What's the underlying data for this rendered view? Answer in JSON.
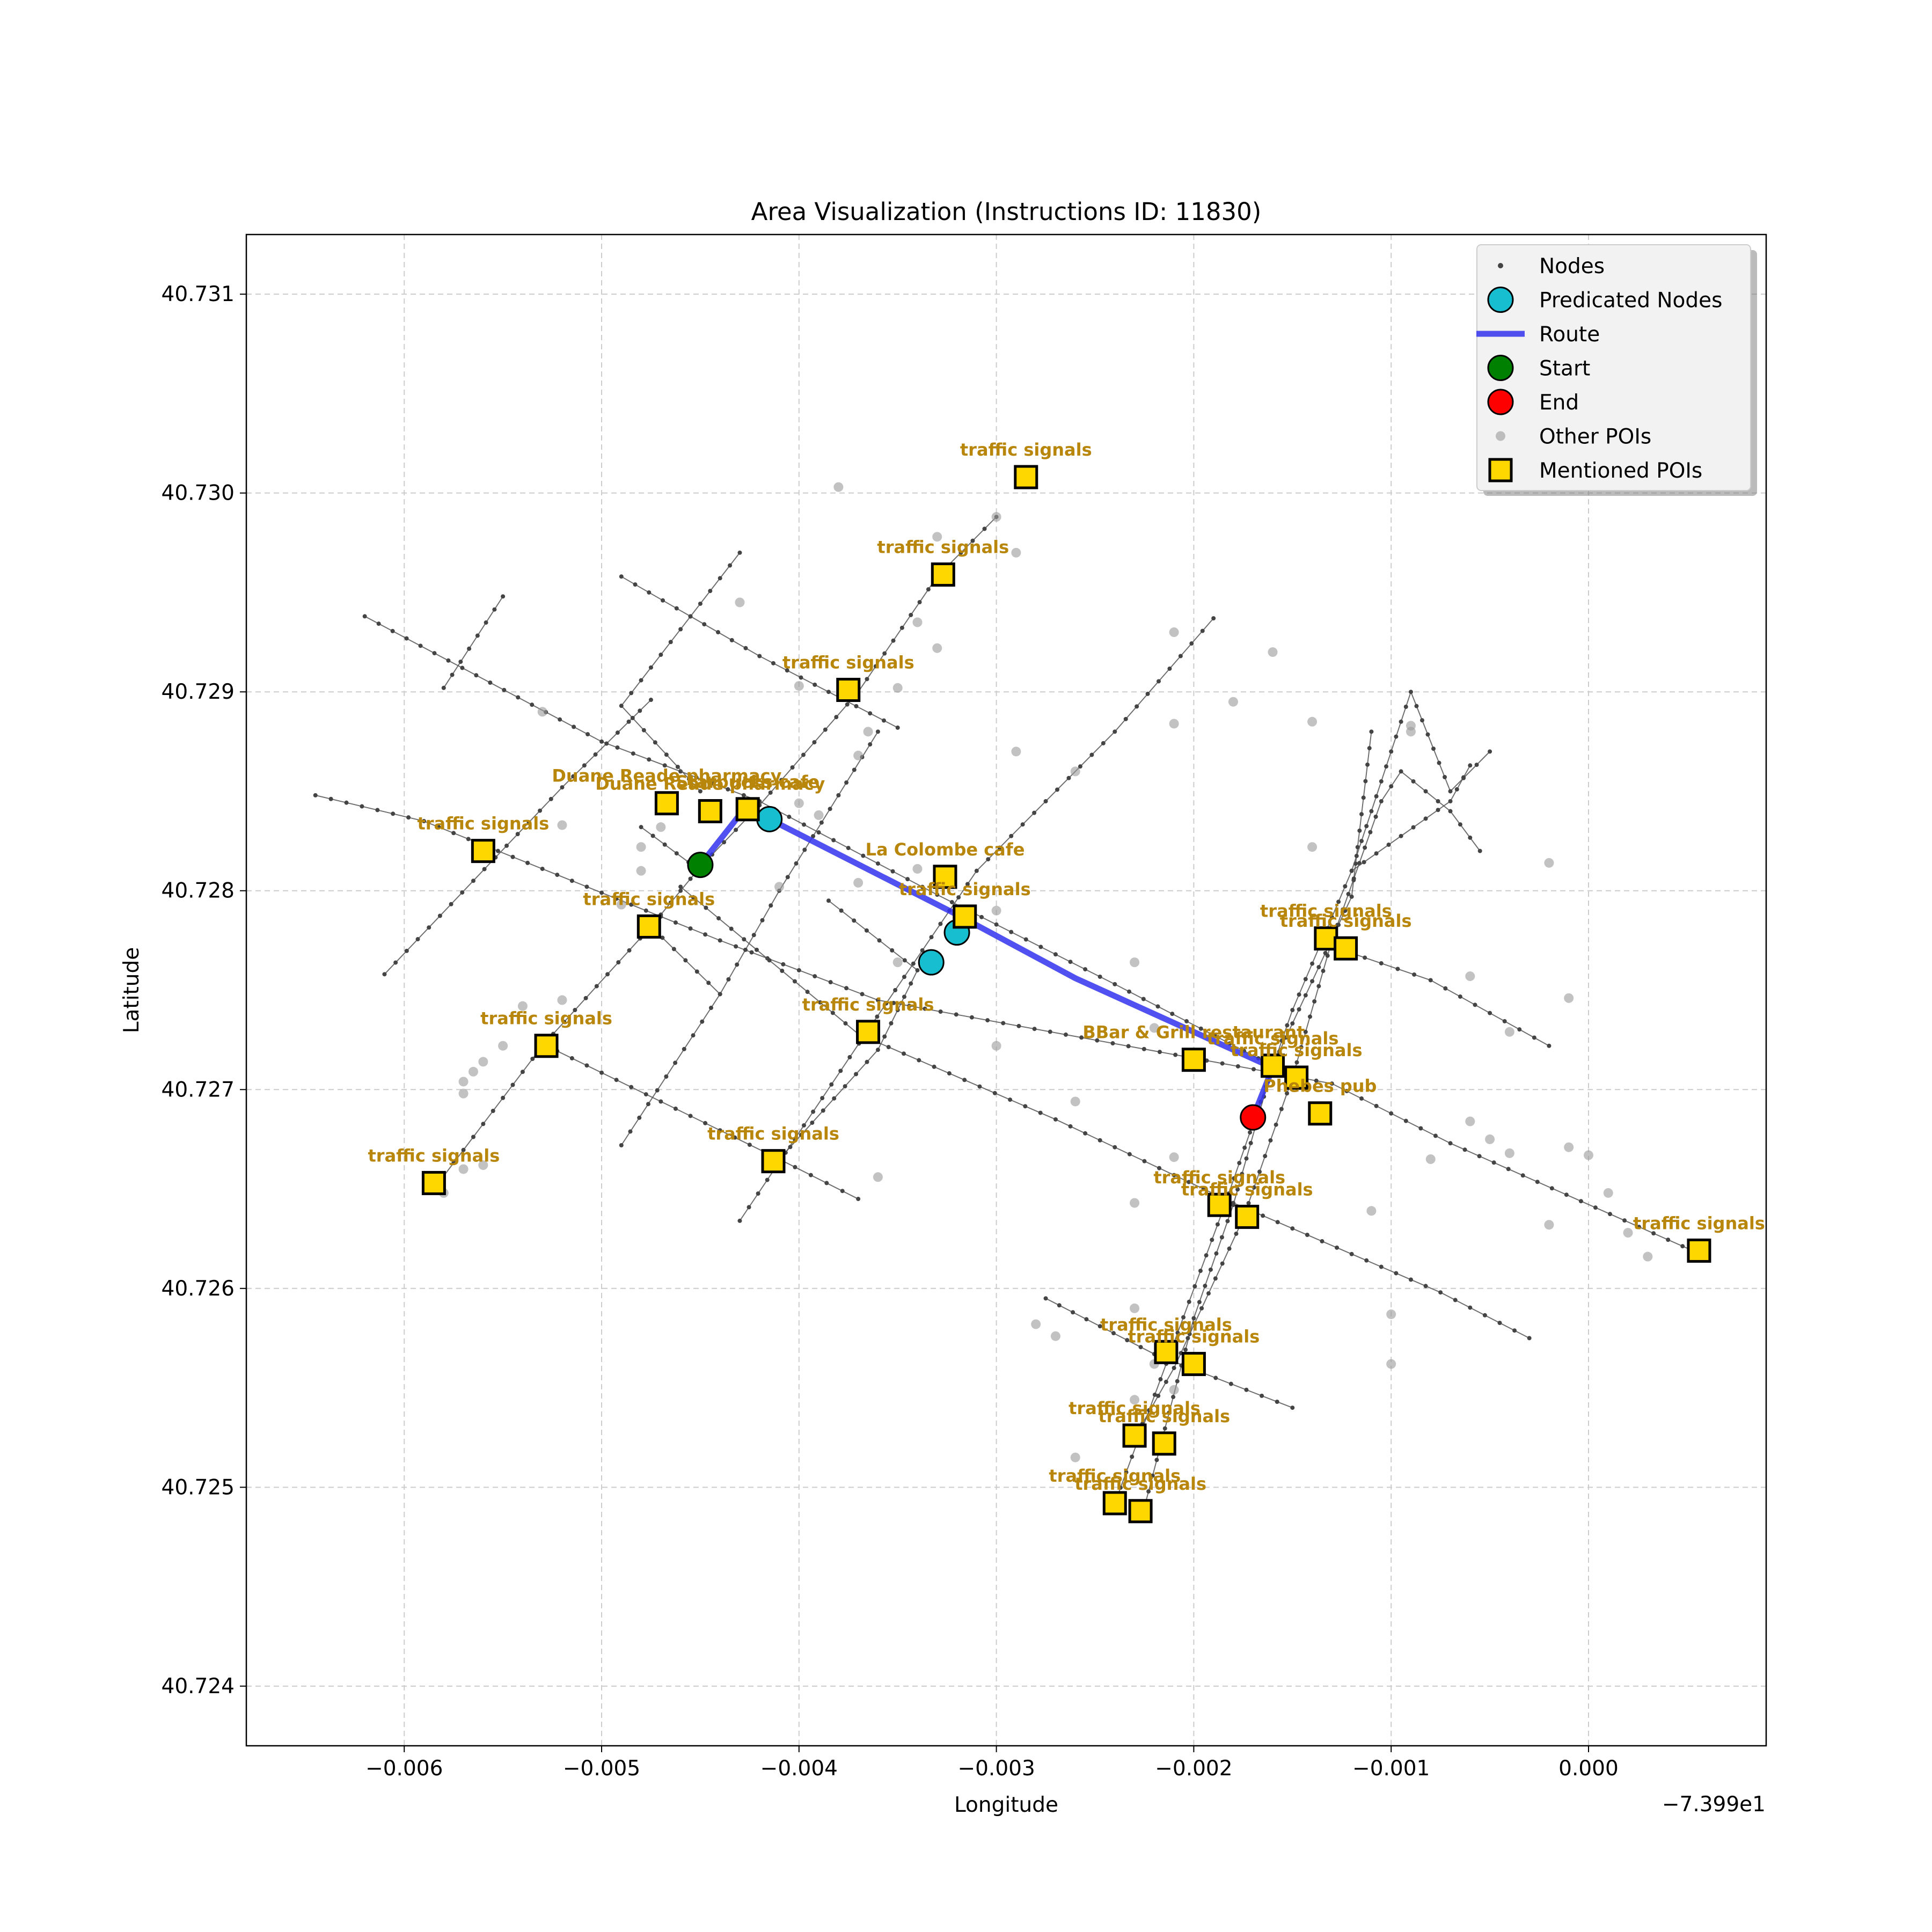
{
  "title": "Area Visualization (Instructions ID: 11830)",
  "xlabel": "Longitude",
  "ylabel": "Latitude",
  "x_offset_label": "−7.399e1",
  "x_ticks": [
    {
      "v": -0.006,
      "label": "−0.006"
    },
    {
      "v": -0.005,
      "label": "−0.005"
    },
    {
      "v": -0.004,
      "label": "−0.004"
    },
    {
      "v": -0.003,
      "label": "−0.003"
    },
    {
      "v": -0.002,
      "label": "−0.002"
    },
    {
      "v": -0.001,
      "label": "−0.001"
    },
    {
      "v": 0.0,
      "label": "0.000"
    }
  ],
  "y_ticks": [
    {
      "v": 40.724,
      "label": "40.724"
    },
    {
      "v": 40.725,
      "label": "40.725"
    },
    {
      "v": 40.726,
      "label": "40.726"
    },
    {
      "v": 40.727,
      "label": "40.727"
    },
    {
      "v": 40.728,
      "label": "40.728"
    },
    {
      "v": 40.729,
      "label": "40.729"
    },
    {
      "v": 40.73,
      "label": "40.730"
    },
    {
      "v": 40.731,
      "label": "40.731"
    }
  ],
  "legend": [
    {
      "key": "nodes",
      "label": "Nodes"
    },
    {
      "key": "predicted",
      "label": "Predicated Nodes"
    },
    {
      "key": "route",
      "label": "Route"
    },
    {
      "key": "start",
      "label": "Start"
    },
    {
      "key": "end",
      "label": "End"
    },
    {
      "key": "other",
      "label": "Other POIs"
    },
    {
      "key": "mentioned",
      "label": "Mentioned POIs"
    }
  ],
  "colors": {
    "route": "#3333ee",
    "predicted": "#17becf",
    "start": "#008000",
    "end": "#ff0000",
    "poi": "#ffd700",
    "poi_label": "#b8860b",
    "node": "#444444",
    "other_poi": "#999999",
    "grid": "#cccccc"
  },
  "chart_data": {
    "type": "scatter",
    "xlim": [
      -0.0068,
      0.0009
    ],
    "ylim": [
      40.7237,
      40.7313
    ],
    "x_offset": -73.99,
    "grid": true,
    "legend_position": "top-right",
    "streets": [
      [
        [
          -0.00645,
          40.72848
        ],
        [
          -0.0059,
          40.72835
        ],
        [
          -0.0044,
          40.72775
        ],
        [
          -0.0036,
          40.72745
        ],
        [
          -0.0013,
          40.72703
        ],
        [
          -0.0007,
          40.72673
        ],
        [
          0.00055,
          40.72618
        ]
      ],
      [
        [
          -0.0062,
          40.72938
        ],
        [
          -0.005,
          40.72875
        ],
        [
          -0.0042,
          40.72845
        ],
        [
          -0.0033,
          40.72798
        ],
        [
          -0.0024,
          40.72753
        ],
        [
          -0.0016,
          40.72712
        ]
      ],
      [
        [
          -0.0049,
          40.72958
        ],
        [
          -0.0042,
          40.72918
        ],
        [
          -0.0035,
          40.72882
        ]
      ],
      [
        [
          -0.0053,
          40.72723
        ],
        [
          -0.0041,
          40.72665
        ],
        [
          -0.0037,
          40.72645
        ]
      ],
      [
        [
          -0.0046,
          40.72802
        ],
        [
          -0.0037,
          40.72728
        ],
        [
          -0.0027,
          40.72685
        ],
        [
          -0.0018,
          40.72643
        ],
        [
          -0.00075,
          40.72598
        ],
        [
          -0.0003,
          40.72575
        ]
      ],
      [
        [
          -0.00275,
          40.72595
        ],
        [
          -0.0022,
          40.72567
        ],
        [
          -0.0015,
          40.7254
        ]
      ],
      [
        [
          -0.0013,
          40.72772
        ],
        [
          -0.0008,
          40.72755
        ],
        [
          -0.0002,
          40.72722
        ]
      ],
      [
        [
          -0.0061,
          40.72758
        ],
        [
          -0.0052,
          40.72852
        ],
        [
          -0.00475,
          40.72896
        ]
      ],
      [
        [
          -0.0058,
          40.72902
        ],
        [
          -0.0055,
          40.72948
        ]
      ],
      [
        [
          -0.00585,
          40.7265
        ],
        [
          -0.0053,
          40.72722
        ],
        [
          -0.00475,
          40.72782
        ],
        [
          -0.0045,
          40.72812
        ],
        [
          -0.0042,
          40.72843
        ],
        [
          -0.0037,
          40.729
        ],
        [
          -0.0033,
          40.72958
        ],
        [
          -0.003,
          40.72988
        ]
      ],
      [
        [
          -0.0049,
          40.72672
        ],
        [
          -0.0044,
          40.72748
        ],
        [
          -0.00475,
          40.72782
        ]
      ],
      [
        [
          -0.0044,
          40.72748
        ],
        [
          -0.0041,
          40.728
        ],
        [
          -0.0038,
          40.72848
        ],
        [
          -0.0036,
          40.7288
        ]
      ],
      [
        [
          -0.0045,
          40.7281
        ],
        [
          -0.0048,
          40.72832
        ]
      ],
      [
        [
          -0.0043,
          40.72634
        ],
        [
          -0.00365,
          40.7273
        ],
        [
          -0.0031,
          40.7281
        ],
        [
          -0.0024,
          40.7288
        ],
        [
          -0.0019,
          40.72937
        ]
      ],
      [
        [
          -0.0045,
          40.7285
        ],
        [
          -0.0049,
          40.72893
        ],
        [
          -0.0043,
          40.7297
        ]
      ],
      [
        [
          -0.0041,
          40.72665
        ],
        [
          -0.0036,
          40.7272
        ],
        [
          -0.0034,
          40.7276
        ],
        [
          -0.00385,
          40.72795
        ]
      ],
      [
        [
          -0.00225,
          40.7249
        ],
        [
          -0.002,
          40.72585
        ],
        [
          -0.0018,
          40.72642
        ],
        [
          -0.0016,
          40.72712
        ],
        [
          -0.0012,
          40.72797
        ],
        [
          -0.0011,
          40.7288
        ]
      ],
      [
        [
          -0.0023,
          40.72525
        ],
        [
          -0.0021,
          40.7256
        ],
        [
          -0.00175,
          40.72635
        ],
        [
          -0.0015,
          40.72706
        ],
        [
          -0.0013,
          40.72775
        ],
        [
          -0.00105,
          40.72845
        ],
        [
          -0.00095,
          40.7286
        ],
        [
          -0.0007,
          40.7284
        ],
        [
          -0.00055,
          40.7282
        ]
      ],
      [
        [
          -0.0024,
          40.72492
        ],
        [
          -0.00185,
          40.7264
        ],
        [
          -0.0015,
          40.7274
        ],
        [
          -0.0012,
          40.7281
        ],
        [
          -0.0007,
          40.72845
        ],
        [
          -0.0006,
          40.72863
        ]
      ],
      [
        [
          -0.0012,
          40.7281
        ],
        [
          -0.0009,
          40.729
        ],
        [
          -0.0007,
          40.7285
        ],
        [
          -0.0005,
          40.7287
        ]
      ]
    ],
    "route": [
      [
        -0.0045,
        40.72813
      ],
      [
        -0.00427,
        40.72842
      ],
      [
        -0.00415,
        40.72836
      ],
      [
        -0.0032,
        40.72788
      ],
      [
        -0.0026,
        40.72756
      ],
      [
        -0.0016,
        40.72711
      ],
      [
        -0.0017,
        40.72686
      ]
    ],
    "predicted_nodes": [
      [
        -0.00415,
        40.72836
      ],
      [
        -0.0032,
        40.72779
      ],
      [
        -0.00333,
        40.72764
      ]
    ],
    "start": [
      -0.0045,
      40.72813
    ],
    "end": [
      -0.0017,
      40.72686
    ],
    "other_pois": [
      [
        -0.0038,
        40.73003
      ],
      [
        -0.0033,
        40.72978
      ],
      [
        -0.003,
        40.72988
      ],
      [
        -0.0029,
        40.7297
      ],
      [
        -0.0034,
        40.72935
      ],
      [
        -0.0043,
        40.72945
      ],
      [
        -0.004,
        40.72903
      ],
      [
        -0.0035,
        40.72902
      ],
      [
        -0.0033,
        40.72922
      ],
      [
        -0.00365,
        40.7288
      ],
      [
        -0.0037,
        40.72868
      ],
      [
        -0.0029,
        40.7287
      ],
      [
        -0.0026,
        40.7286
      ],
      [
        -0.0021,
        40.7293
      ],
      [
        -0.0021,
        40.72884
      ],
      [
        -0.0018,
        40.72895
      ],
      [
        -0.0016,
        40.7292
      ],
      [
        -0.0014,
        40.72885
      ],
      [
        -0.0009,
        40.72883
      ],
      [
        -0.0009,
        40.7288
      ],
      [
        -0.0014,
        40.72822
      ],
      [
        -0.0002,
        40.72814
      ],
      [
        -0.0006,
        40.72757
      ],
      [
        -0.0001,
        40.72746
      ],
      [
        -0.0004,
        40.72729
      ],
      [
        -0.0039,
        40.72838
      ],
      [
        -0.004,
        40.72844
      ],
      [
        -0.0052,
        40.72833
      ],
      [
        -0.0053,
        40.7289
      ],
      [
        -0.0048,
        40.7281
      ],
      [
        -0.0048,
        40.72822
      ],
      [
        -0.0047,
        40.72832
      ],
      [
        -0.0049,
        40.72793
      ],
      [
        -0.0041,
        40.72802
      ],
      [
        -0.0037,
        40.72804
      ],
      [
        -0.0034,
        40.72811
      ],
      [
        -0.0035,
        40.72764
      ],
      [
        -0.003,
        40.7279
      ],
      [
        -0.0023,
        40.72764
      ],
      [
        -0.003,
        40.72722
      ],
      [
        -0.0022,
        40.72731
      ],
      [
        -0.0026,
        40.72694
      ],
      [
        -0.0052,
        40.72745
      ],
      [
        -0.0054,
        40.72742
      ],
      [
        -0.0055,
        40.72722
      ],
      [
        -0.0056,
        40.72714
      ],
      [
        -0.00565,
        40.72709
      ],
      [
        -0.0057,
        40.72704
      ],
      [
        -0.0057,
        40.72698
      ],
      [
        -0.0056,
        40.72662
      ],
      [
        -0.0057,
        40.7266
      ],
      [
        -0.0058,
        40.72648
      ],
      [
        -0.0036,
        40.72656
      ],
      [
        -0.0021,
        40.72666
      ],
      [
        -0.0023,
        40.72643
      ],
      [
        -0.0011,
        40.72639
      ],
      [
        -0.0008,
        40.72665
      ],
      [
        -0.0006,
        40.72684
      ],
      [
        -0.0005,
        40.72675
      ],
      [
        -0.0004,
        40.72668
      ],
      [
        -0.0001,
        40.72671
      ],
      [
        0.0,
        40.72667
      ],
      [
        0.0002,
        40.72628
      ],
      [
        0.0003,
        40.72616
      ],
      [
        0.0001,
        40.72648
      ],
      [
        -0.0002,
        40.72632
      ],
      [
        -0.0028,
        40.72582
      ],
      [
        -0.0027,
        40.72576
      ],
      [
        -0.0023,
        40.7259
      ],
      [
        -0.0022,
        40.72562
      ],
      [
        -0.0021,
        40.72549
      ],
      [
        -0.0023,
        40.72544
      ],
      [
        -0.0026,
        40.72515
      ],
      [
        -0.001,
        40.72587
      ],
      [
        -0.001,
        40.72562
      ]
    ],
    "mentioned_pois": [
      {
        "label": "traffic signals",
        "x": -0.00285,
        "y": 40.73008
      },
      {
        "label": "traffic signals",
        "x": -0.00327,
        "y": 40.72959
      },
      {
        "label": "traffic signals",
        "x": -0.00375,
        "y": 40.72901
      },
      {
        "label": "Duane Reade pharmacy",
        "x": -0.00467,
        "y": 40.72844
      },
      {
        "label": "Duane Reade pharmacy",
        "x": -0.00445,
        "y": 40.7284
      },
      {
        "label": "Starbucks cafe",
        "x": -0.00426,
        "y": 40.72841
      },
      {
        "label": "traffic signals",
        "x": -0.0056,
        "y": 40.7282
      },
      {
        "label": "La Colombe cafe",
        "x": -0.00326,
        "y": 40.72807
      },
      {
        "label": "traffic signals",
        "x": -0.00316,
        "y": 40.72787
      },
      {
        "label": "traffic signals",
        "x": -0.00476,
        "y": 40.72782
      },
      {
        "label": "traffic signals",
        "x": -0.00528,
        "y": 40.72722
      },
      {
        "label": "traffic signals",
        "x": -0.00365,
        "y": 40.72729
      },
      {
        "label": "traffic signals",
        "x": -0.00413,
        "y": 40.72664
      },
      {
        "label": "traffic signals",
        "x": -0.00585,
        "y": 40.72653
      },
      {
        "label": "BBar & Grill restaurant",
        "x": -0.002,
        "y": 40.72715
      },
      {
        "label": "traffic signals",
        "x": -0.0016,
        "y": 40.72712
      },
      {
        "label": "traffic signals",
        "x": -0.00148,
        "y": 40.72706
      },
      {
        "label": "Phebes pub",
        "x": -0.00136,
        "y": 40.72688
      },
      {
        "label": "traffic signals",
        "x": -0.00133,
        "y": 40.72776
      },
      {
        "label": "traffic signals",
        "x": -0.00123,
        "y": 40.72771
      },
      {
        "label": "traffic signals",
        "x": -0.00187,
        "y": 40.72642
      },
      {
        "label": "traffic signals",
        "x": -0.00173,
        "y": 40.72636
      },
      {
        "label": "traffic signals",
        "x": 0.00056,
        "y": 40.72619
      },
      {
        "label": "traffic signals",
        "x": -0.00214,
        "y": 40.72568
      },
      {
        "label": "traffic signals",
        "x": -0.002,
        "y": 40.72562
      },
      {
        "label": "traffic signals",
        "x": -0.0023,
        "y": 40.72526
      },
      {
        "label": "traffic signals",
        "x": -0.00215,
        "y": 40.72522
      },
      {
        "label": "traffic signals",
        "x": -0.0024,
        "y": 40.72492
      },
      {
        "label": "traffic signals",
        "x": -0.00227,
        "y": 40.72488
      }
    ]
  }
}
